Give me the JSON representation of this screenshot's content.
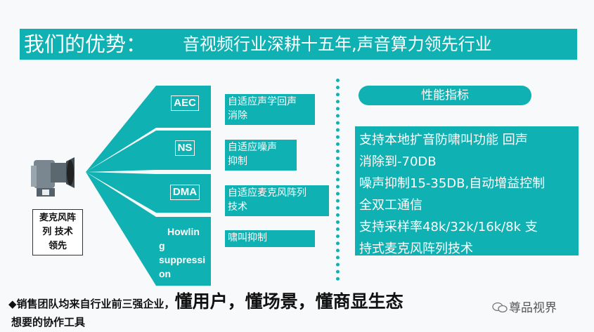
{
  "title": {
    "left": "我们的优势：",
    "right": "音视频行业深耕十五年,声音算力领先行业"
  },
  "device_label": [
    "麦克风阵",
    "列 技术",
    "领先"
  ],
  "modules": [
    {
      "label": "AEC",
      "desc": [
        "自适应声学回声",
        "消除"
      ]
    },
    {
      "label": "NS",
      "desc": [
        "自适应噪声",
        "抑制"
      ]
    },
    {
      "label": "DMA",
      "desc": [
        "自适应麦克风阵列",
        "技术"
      ]
    },
    {
      "label": [
        "Howlin",
        "g",
        "suppressi",
        "on"
      ],
      "desc": [
        "啸叫抑制"
      ]
    }
  ],
  "performance": {
    "heading": "性能指标",
    "lines": [
      "支持本地扩音防啸叫功能 回声",
      "消除到-70DB",
      "噪声抑制15-35DB,自动增益控制",
      "全双工通信",
      "支持采样率48k/32k/16k/8k 支",
      "持式麦克风阵列技术"
    ]
  },
  "footer": {
    "bullet": "◆",
    "line1_small": "销售团队均来自行业前三强企业，",
    "line1_big": "懂用户，懂场景，懂商显生态",
    "line2": "想要的协作工具"
  },
  "watermark": "尊品视界",
  "colors": {
    "accent": "#10b1b2"
  }
}
